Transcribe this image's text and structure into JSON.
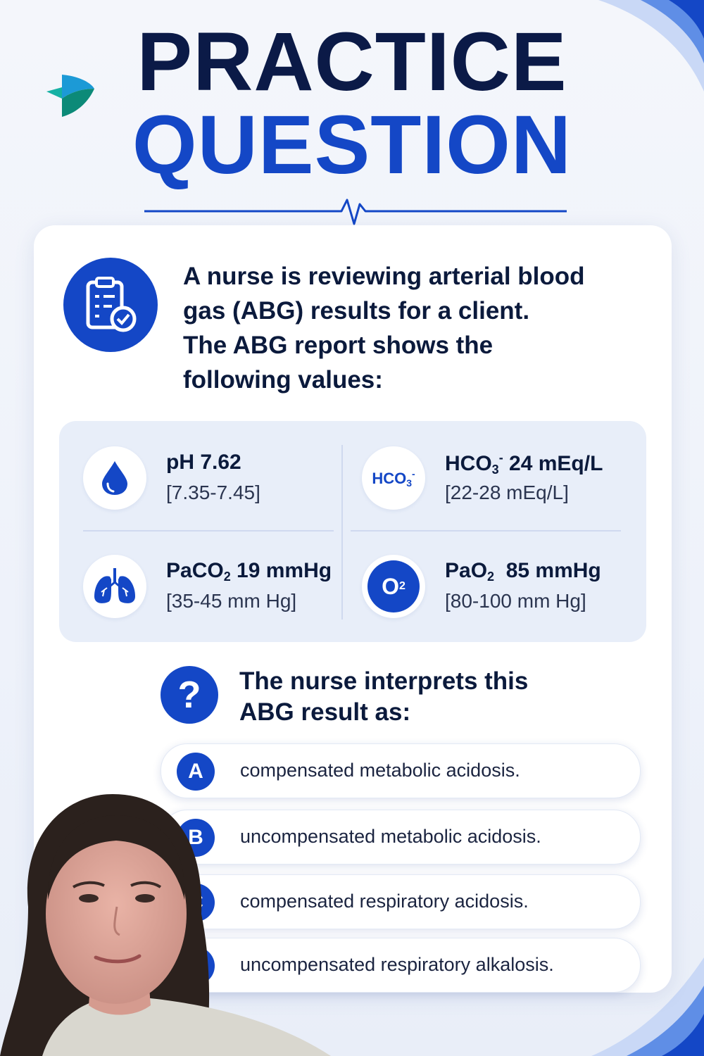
{
  "header": {
    "title_line1": "PRACTICE",
    "title_line2": "QUESTION"
  },
  "question": {
    "stem_lines": [
      "A nurse is reviewing arterial blood",
      "gas (ABG) results for a client.",
      "The ABG report shows the",
      "following values:"
    ]
  },
  "abg_values": {
    "ph": {
      "label": "pH 7.62",
      "range": "[7.35-7.45]"
    },
    "hco3": {
      "label_base": "HCO",
      "label_sub": "3",
      "label_sup": "-",
      "label_value": " 24 mEq/L",
      "range": "[22-28 mEq/L]",
      "icon_text": "HCO",
      "icon_sub": "3",
      "icon_sup": "-"
    },
    "paco2": {
      "label_base": "PaCO",
      "label_sub": "2",
      "label_value": " 19 mmHg",
      "range": "[35-45 mm Hg]"
    },
    "pao2": {
      "label_base": "PaO",
      "label_sub": "2",
      "label_value": "  85 mmHg",
      "range": "[80-100 mm Hg]",
      "icon_text": "O",
      "icon_sub": "2"
    }
  },
  "prompt": {
    "icon_text": "?",
    "lines": [
      "The nurse interprets this",
      "ABG result as:"
    ]
  },
  "options": [
    {
      "letter": "A",
      "text": "compensated metabolic acidosis."
    },
    {
      "letter": "B",
      "text": "uncompensated metabolic acidosis."
    },
    {
      "letter": "C",
      "text": "compensated respiratory acidosis."
    },
    {
      "letter": "D",
      "text": "uncompensated respiratory alkalosis."
    }
  ],
  "colors": {
    "brand_blue": "#1447c6",
    "navy": "#0b1a47",
    "panel": "#e8eef9"
  }
}
